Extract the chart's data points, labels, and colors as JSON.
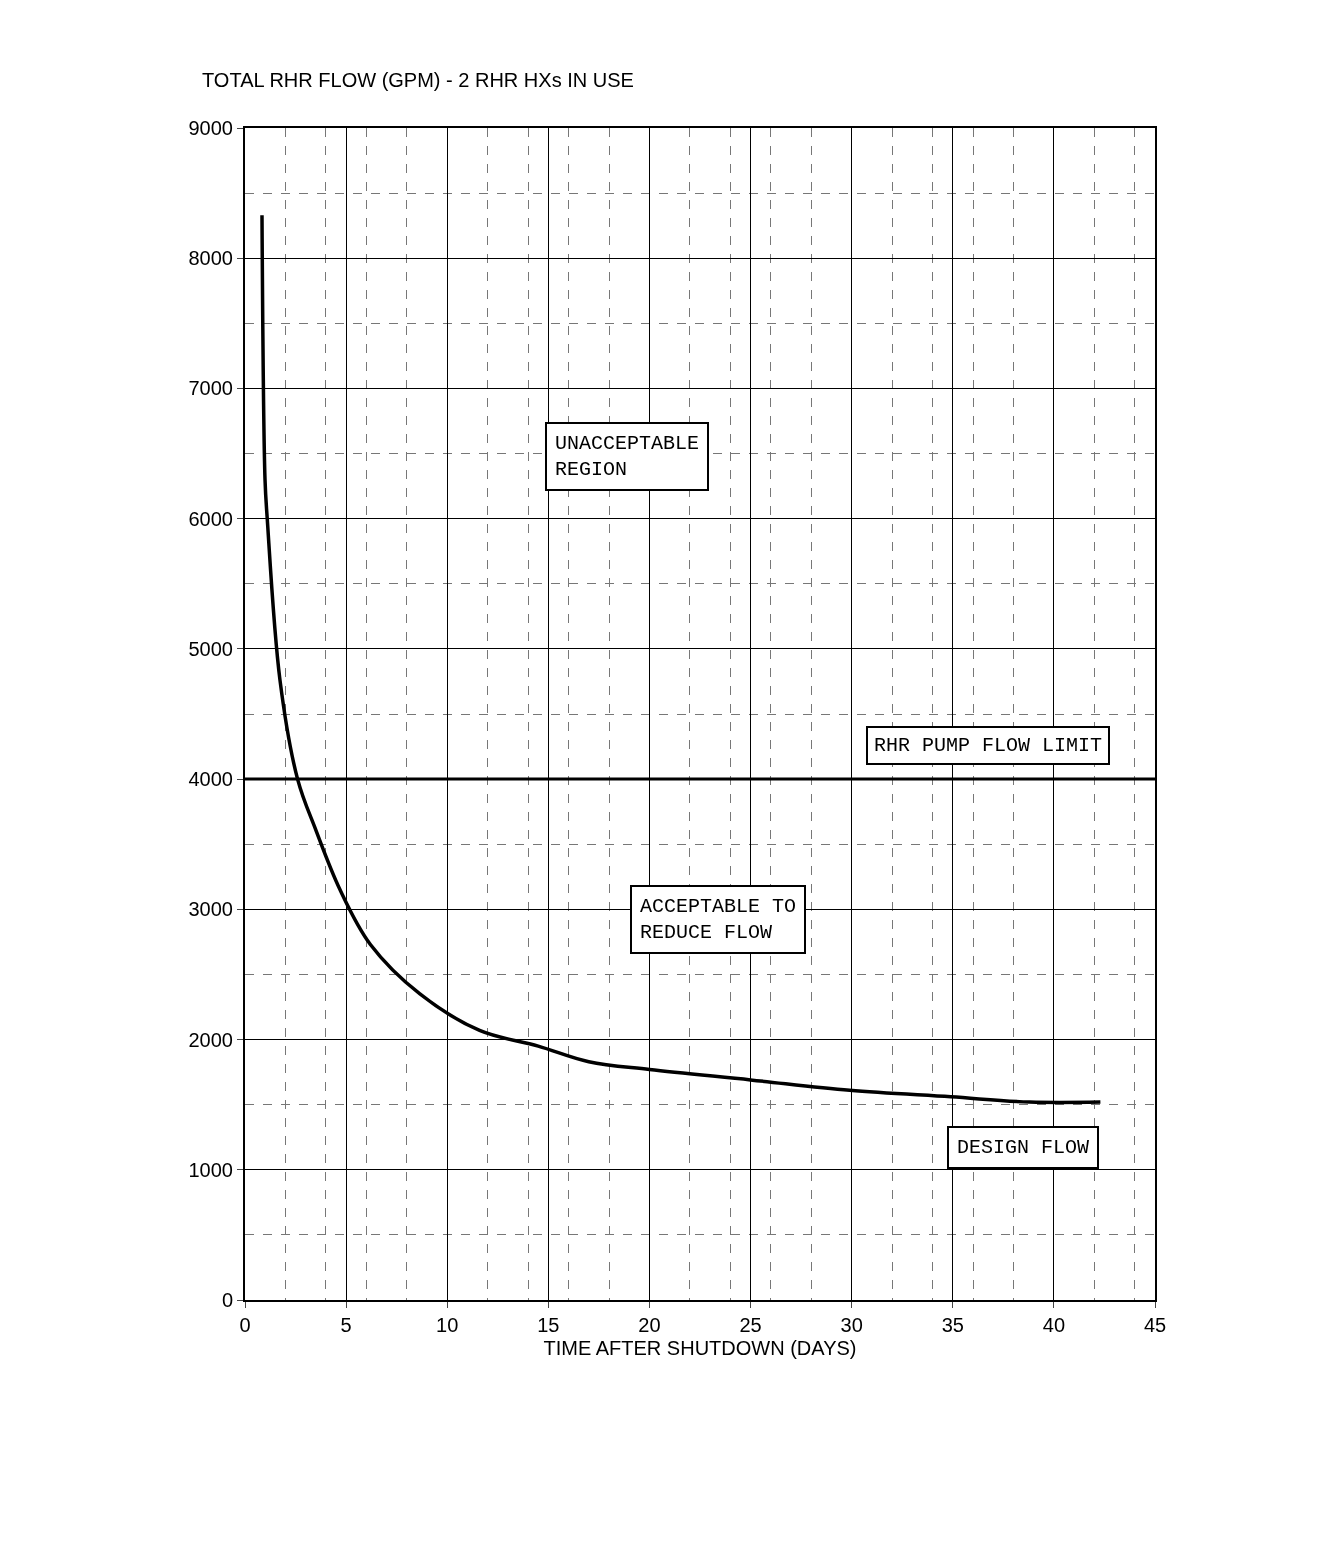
{
  "chart_data": {
    "type": "line",
    "ylabel": "TOTAL RHR FLOW (GPM) - 2 RHR HXs IN USE",
    "xlabel": "TIME AFTER SHUTDOWN (DAYS)",
    "x": [
      0.84,
      0.99,
      1.1,
      1.73,
      2.6,
      3.5,
      4.7,
      6.2,
      8.65,
      11.6,
      14.5,
      17,
      20,
      25,
      29.9,
      34.9,
      38.8,
      42.3
    ],
    "series": [
      {
        "color": "#000000",
        "values": [
          8330,
          6300,
          6000,
          4760,
          4000,
          3610,
          3150,
          2730,
          2350,
          2070,
          1950,
          1830,
          1770,
          1690,
          1610,
          1560,
          1520,
          1520
        ]
      }
    ],
    "xlim": [
      0,
      45
    ],
    "xticks": [
      0,
      5,
      10,
      15,
      20,
      25,
      30,
      35,
      40,
      45
    ],
    "ylim": [
      0,
      9000
    ],
    "yticks": [
      0,
      1000,
      2000,
      3000,
      4000,
      5000,
      6000,
      7000,
      8000,
      9000
    ],
    "grid": true,
    "legend": false,
    "marker": "none",
    "line_style": "solid",
    "ref_lines": [
      {
        "axis": "y",
        "value": 4000,
        "label": "RHR PUMP FLOW LIMIT",
        "color": "#000000"
      }
    ],
    "annotations": [
      "UNACCEPTABLE\nREGION",
      "ACCEPTABLE TO\nREDUCE FLOW",
      "DESIGN FLOW"
    ]
  }
}
